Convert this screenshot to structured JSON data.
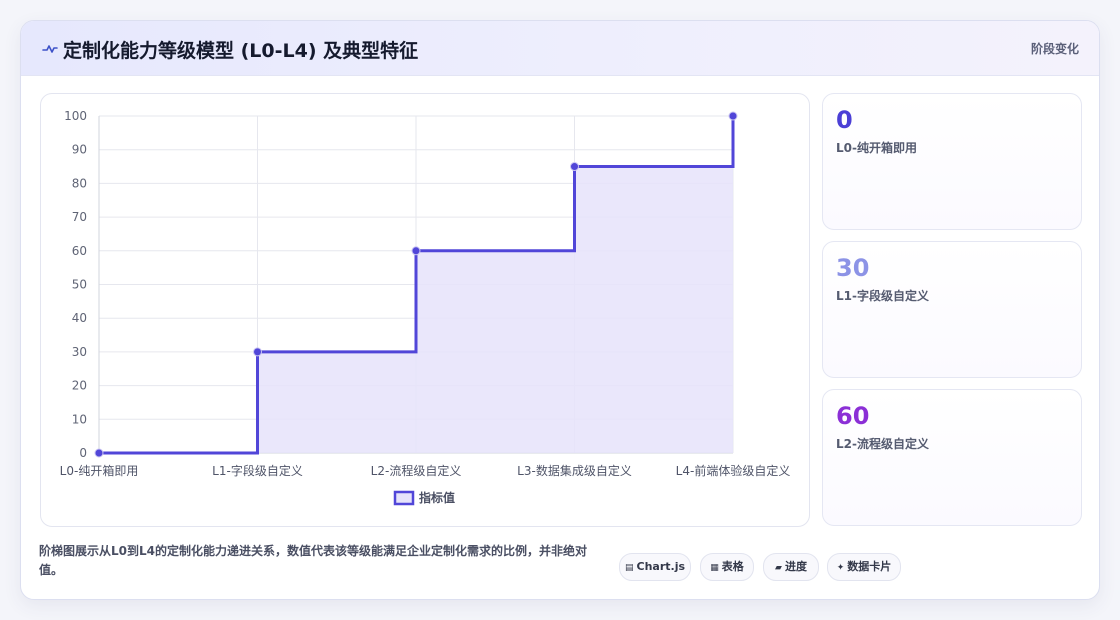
{
  "header": {
    "icon": "pulse-line-icon",
    "title": "定制化能力等级模型 (L0-L4) 及典型特征",
    "tag": "阶段变化"
  },
  "chart_data": {
    "type": "line",
    "step": true,
    "categories": [
      "L0-纯开箱即用",
      "L1-字段级自定义",
      "L2-流程级自定义",
      "L3-数据集成级自定义",
      "L4-前端体验级自定义"
    ],
    "series": [
      {
        "name": "指标值",
        "values": [
          0,
          30,
          60,
          85,
          100
        ]
      }
    ],
    "ylim": [
      0,
      100
    ],
    "yticks": [
      "0",
      "10",
      "20",
      "30",
      "40",
      "50",
      "60",
      "70",
      "80",
      "90",
      "100"
    ],
    "grid": true,
    "legend": "bottom",
    "colors": {
      "line": "#5146d8",
      "fill": "#e6e3fa"
    }
  },
  "kpis": [
    {
      "value": "0",
      "label": "L0-纯开箱即用",
      "color": "#4b3fd6"
    },
    {
      "value": "30",
      "label": "L1-字段级自定义",
      "color": "#8c93e6"
    },
    {
      "value": "60",
      "label": "L2-流程级自定义",
      "color": "#8b2fd6"
    }
  ],
  "footer": {
    "description": "阶梯图展示从L0到L4的定制化能力递进关系，数值代表该等级能满足企业定制化需求的比例，并非绝对值。",
    "chips": [
      {
        "icon": "chart-icon",
        "label": "Chart.js"
      },
      {
        "icon": "table-icon",
        "label": "表格"
      },
      {
        "icon": "progress-icon",
        "label": "进度"
      },
      {
        "icon": "sparkle-icon",
        "label": "数据卡片"
      }
    ]
  }
}
